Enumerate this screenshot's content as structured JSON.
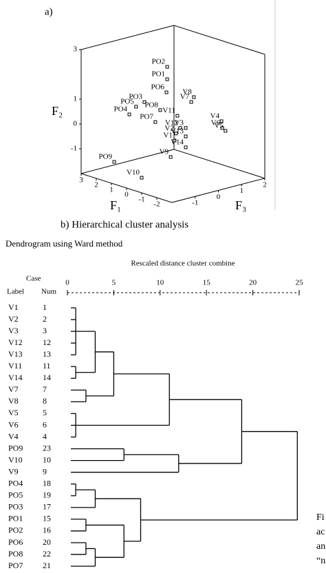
{
  "figure_label": "a)",
  "chart_data": [
    {
      "type": "scatter3d",
      "x_label": "F₁",
      "y_label": "F₂",
      "z_label": "F₃",
      "xlim": [
        -3,
        3
      ],
      "ylim": [
        -2,
        3
      ],
      "zlim": [
        -2,
        2
      ],
      "xticks": [
        3,
        2,
        1,
        0,
        -1,
        -2
      ],
      "yticks": [
        3,
        1,
        0,
        -1
      ],
      "zticks": [
        -1,
        0,
        1,
        2
      ],
      "points": {
        "labels": [
          "PO2",
          "PO1",
          "PO3",
          "PO6",
          "PO5",
          "PO8",
          "PO4",
          "PO7",
          "V8",
          "V7",
          "V11",
          "V4",
          "V6",
          "V5",
          "V12",
          "V3",
          "V13",
          "V2",
          "V1",
          "V14",
          "V9",
          "PO9",
          "V10"
        ],
        "x": [
          0,
          0,
          0,
          0,
          0,
          0,
          0,
          0,
          0,
          0,
          0,
          -1,
          -1,
          -1,
          0,
          0,
          0,
          0,
          0,
          0,
          0,
          1,
          -1
        ],
        "y": [
          2.46,
          1.96,
          1.28,
          1.44,
          1.18,
          0.79,
          0.94,
          0.36,
          0.96,
          0.79,
          0.38,
          0.05,
          -0.23,
          -0.38,
          -0.14,
          -0.2,
          -0.54,
          -0.32,
          -0.59,
          -0.98,
          -1.21,
          -1.17,
          -1.39
        ],
        "z": [
          -0.25,
          -0.25,
          -1.23,
          -0.28,
          -1.59,
          -0.55,
          -1.88,
          -0.76,
          0.9,
          0.79,
          0.19,
          1.44,
          1.47,
          1.61,
          0.31,
          0.55,
          0.55,
          0.13,
          0.07,
          0.55,
          -0.1,
          -1.88,
          -2
        ]
      }
    },
    {
      "type": "dendrogram",
      "title": "b) Hierarchical cluster analysis",
      "subtitle": "Dendrogram using Ward method",
      "x_label": "Rescaled distance cluster combine",
      "header_case": "Case",
      "header_label": "Label",
      "header_num": "Num",
      "xlim": [
        0,
        25
      ],
      "xticks": [
        0,
        5,
        10,
        15,
        20,
        25
      ],
      "tree": {
        "distance": 24.8,
        "children": [
          {
            "distance": 18.8,
            "children": [
              {
                "distance": 11.0,
                "children": [
                  {
                    "distance": 5.0,
                    "children": [
                      {
                        "distance": 3.0,
                        "children": [
                          {
                            "distance": 0.9,
                            "children": [
                              {
                                "label": "V1",
                                "num": "1"
                              },
                              {
                                "label": "V2",
                                "num": "2"
                              },
                              {
                                "label": "V3",
                                "num": "3"
                              },
                              {
                                "label": "V12",
                                "num": "12"
                              },
                              {
                                "label": "V13",
                                "num": "13"
                              }
                            ]
                          },
                          {
                            "distance": 0.9,
                            "children": [
                              {
                                "label": "V11",
                                "num": "11"
                              },
                              {
                                "label": "V14",
                                "num": "14"
                              }
                            ]
                          }
                        ]
                      },
                      {
                        "distance": 2.0,
                        "children": [
                          {
                            "label": "V7",
                            "num": "7"
                          },
                          {
                            "label": "V8",
                            "num": "8"
                          }
                        ]
                      }
                    ]
                  },
                  {
                    "distance": 0.9,
                    "children": [
                      {
                        "label": "V5",
                        "num": "5"
                      },
                      {
                        "label": "V6",
                        "num": "6"
                      },
                      {
                        "label": "V4",
                        "num": "4"
                      }
                    ]
                  }
                ]
              },
              {
                "distance": 12.0,
                "children": [
                  {
                    "distance": 6.1,
                    "children": [
                      {
                        "label": "PO9",
                        "num": "23"
                      },
                      {
                        "label": "V10",
                        "num": "10"
                      }
                    ]
                  },
                  {
                    "label": "V9",
                    "num": "9"
                  }
                ]
              }
            ]
          },
          {
            "distance": 7.9,
            "children": [
              {
                "distance": 3.0,
                "children": [
                  {
                    "distance": 0.9,
                    "children": [
                      {
                        "label": "PO4",
                        "num": "18"
                      },
                      {
                        "label": "PO5",
                        "num": "19"
                      }
                    ]
                  },
                  {
                    "label": "PO3",
                    "num": "17"
                  }
                ]
              },
              {
                "distance": 6.1,
                "children": [
                  {
                    "distance": 2.0,
                    "children": [
                      {
                        "label": "PO1",
                        "num": "15"
                      },
                      {
                        "label": "PO2",
                        "num": "16"
                      }
                    ]
                  },
                  {
                    "distance": 3.0,
                    "children": [
                      {
                        "distance": 2.0,
                        "children": [
                          {
                            "label": "PO6",
                            "num": "20"
                          },
                          {
                            "label": "PO8",
                            "num": "22"
                          }
                        ]
                      },
                      {
                        "label": "PO7",
                        "num": "21"
                      }
                    ]
                  }
                ]
              }
            ]
          }
        ]
      }
    }
  ],
  "caption_fragments": [
    "Fi",
    "ac",
    "an",
    "“n"
  ]
}
